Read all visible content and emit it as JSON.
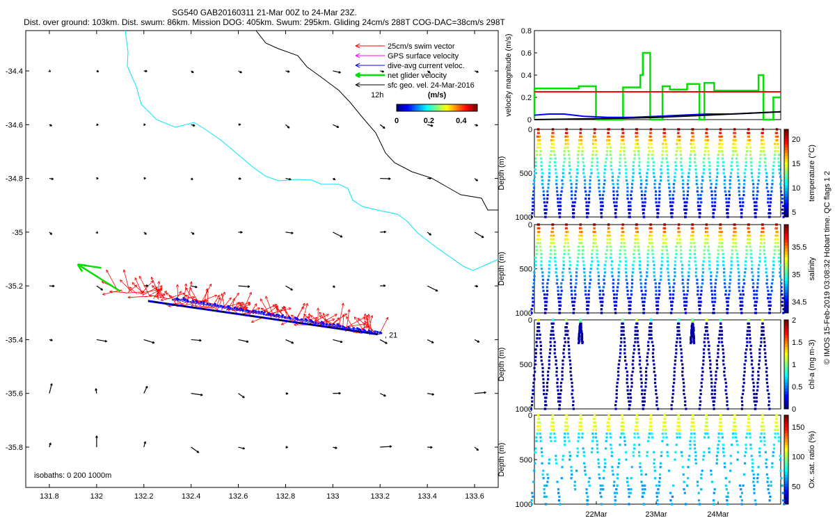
{
  "header": {
    "line1": "SG540 GAB20160311 21-Mar 00Z to 24-Mar 23Z.",
    "line2": "Dist. over ground: 103km. Dist. swum: 86km. Mission DOG: 405km. Swum: 295km. Gliding 24cm/s 288T COG-DAC=38cm/s 298T"
  },
  "colors": {
    "swim": "#ff0000",
    "gps": "#ff00ff",
    "dac": "#0000ff",
    "net": "#00e000",
    "sfc": "#000000",
    "coast_shallow": "#00e5ff",
    "coast_deep": "#000000"
  },
  "chart_data": [
    {
      "type": "map",
      "xlim": [
        131.7,
        133.7
      ],
      "ylim": [
        -35.95,
        -34.25
      ],
      "xticks": [
        "131.8",
        "132",
        "132.2",
        "132.4",
        "132.6",
        "132.8",
        "133",
        "133.2",
        "133.4",
        "133.6"
      ],
      "yticks": [
        "-34.4",
        "-34.6",
        "-34.8",
        "-35",
        "-35.2",
        "-35.4",
        "-35.6",
        "-35.8"
      ],
      "legend": {
        "entries": [
          "25cm/s swim vector",
          "GPS surface velocity",
          "dive-avg current veloc.",
          "net glider velocity",
          "sfc geo. vel. 24-Mar-2016"
        ],
        "time_label": "12h"
      },
      "colorbar": {
        "label": "(m/s)",
        "ticks": [
          "0",
          "0.2",
          "0.4"
        ],
        "range": [
          0,
          0.5
        ]
      },
      "isobaths_label": "isobaths: 0   200  1000m",
      "end_label": ", 21",
      "track": {
        "start": [
          132.1,
          -35.22
        ],
        "end": [
          133.19,
          -35.38
        ]
      },
      "net_vector": {
        "from": [
          132.1,
          -35.22
        ],
        "to": [
          131.92,
          -35.12
        ]
      },
      "geo_vectors": {
        "lons": [
          131.8,
          132.0,
          132.2,
          132.4,
          132.6,
          132.8,
          133.0,
          133.2,
          133.4,
          133.6
        ],
        "lats": [
          -34.4,
          -34.6,
          -34.8,
          -35.0,
          -35.2,
          -35.4,
          -35.6,
          -35.8
        ]
      }
    },
    {
      "type": "line",
      "ylabel": "velocity magnitude (m/s)",
      "ylim": [
        0,
        0.8
      ],
      "yticks": [
        "0",
        "0.2",
        "0.4",
        "0.6",
        "0.8"
      ],
      "series": [
        {
          "color": "#00e000",
          "x": [
            0,
            0.0,
            0.18,
            0.18,
            0.25,
            0.25,
            0.36,
            0.36,
            0.43,
            0.43,
            0.44,
            0.44,
            0.47,
            0.47,
            0.52,
            0.52,
            0.55,
            0.55,
            0.62,
            0.62,
            0.67,
            0.67,
            0.69,
            0.69,
            0.73,
            0.73,
            0.91,
            0.91,
            0.93,
            0.93,
            0.97,
            0.97,
            1.0
          ],
          "y": [
            0.02,
            0.28,
            0.28,
            0.3,
            0.3,
            0.0,
            0.0,
            0.29,
            0.29,
            0.4,
            0.4,
            0.6,
            0.6,
            0.0,
            0.0,
            0.3,
            0.3,
            0.27,
            0.27,
            0.32,
            0.32,
            0.0,
            0.0,
            0.33,
            0.33,
            0.26,
            0.26,
            0.4,
            0.4,
            0.0,
            0.0,
            0.2,
            0.2
          ]
        },
        {
          "color": "#ff0000",
          "x": [
            0,
            1
          ],
          "y": [
            0.25,
            0.25
          ]
        },
        {
          "color": "#0000ff",
          "x": [
            0,
            0.06,
            0.12,
            0.2,
            0.3,
            0.4,
            0.5,
            0.6,
            0.7,
            0.8,
            0.9,
            1.0
          ],
          "y": [
            0.04,
            0.05,
            0.05,
            0.03,
            0.02,
            0.02,
            0.03,
            0.04,
            0.05,
            0.05,
            0.06,
            0.07
          ]
        },
        {
          "color": "#000000",
          "x": [
            0,
            0.3,
            0.5,
            0.7,
            1.0
          ],
          "y": [
            0.0,
            0.01,
            0.02,
            0.04,
            0.07
          ]
        }
      ]
    },
    {
      "type": "scatter",
      "ylabel": "Depth (m)",
      "clabel": "temperature (°C)",
      "cticks": [
        "5",
        "10",
        "15",
        "20"
      ],
      "ylim": [
        1000,
        0
      ],
      "yticks": [
        "0",
        "500",
        "1000"
      ],
      "crange": [
        4,
        22
      ]
    },
    {
      "type": "scatter",
      "ylabel": "Depth (m)",
      "clabel": "salinity",
      "cticks": [
        "34.5",
        "35",
        "35.5"
      ],
      "ylim": [
        1000,
        0
      ],
      "yticks": [
        "0",
        "500",
        "1000"
      ],
      "crange": [
        34.3,
        35.9
      ]
    },
    {
      "type": "scatter",
      "ylabel": "Depth (m)",
      "clabel": "chl-a (mg m-3)",
      "cticks": [
        "0",
        "0.5",
        "1",
        "1.5",
        "2"
      ],
      "ylim": [
        1000,
        0
      ],
      "yticks": [
        "0",
        "500",
        "1000"
      ],
      "crange": [
        0,
        2
      ]
    },
    {
      "type": "scatter",
      "ylabel": "Depth (m)",
      "clabel": "Ox. sat. ratio (%)",
      "cticks": [
        "50",
        "100",
        "150"
      ],
      "ylim": [
        1000,
        0
      ],
      "yticks": [
        "0",
        "500",
        "1000"
      ],
      "crange": [
        20,
        170
      ],
      "xticks": [
        "22Mar",
        "23Mar",
        "24Mar"
      ]
    }
  ],
  "side_note": "© IMOS 15-Feb-2019 03:08:32 Hobart time. QC flags 1  2"
}
